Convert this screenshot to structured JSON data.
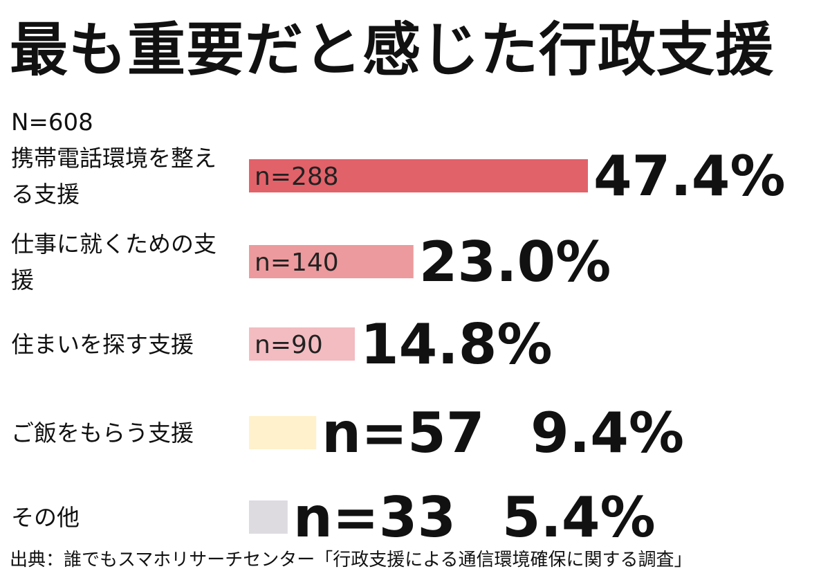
{
  "chart_data": {
    "type": "bar",
    "orientation": "horizontal",
    "title": "最も重要だと感じた行政支援",
    "sample_size": "N=608",
    "categories": [
      [
        "携帯電話環境を整え",
        "る支援"
      ],
      [
        "仕事に就くための支",
        "援"
      ],
      [
        "住まいを探す支援"
      ],
      [
        "ご飯をもらう支援"
      ],
      [
        "その他"
      ]
    ],
    "counts": [
      "n=288",
      "n=140",
      "n=90",
      "n=57",
      "n=33"
    ],
    "values": [
      47.4,
      23.0,
      14.8,
      9.4,
      5.4
    ],
    "value_labels": [
      "47.4%",
      "23.0%",
      "14.8%",
      "9.4%",
      "5.4%"
    ],
    "bar_colors": [
      "#e2626a",
      "#ec9a9d",
      "#f2bcc1",
      "#fff1cc",
      "#dddae0"
    ],
    "legend": "none",
    "grid": false,
    "source": "出典：誰でもスマホリサーチセンター「行政支援による通信環境確保に関する調査」"
  }
}
